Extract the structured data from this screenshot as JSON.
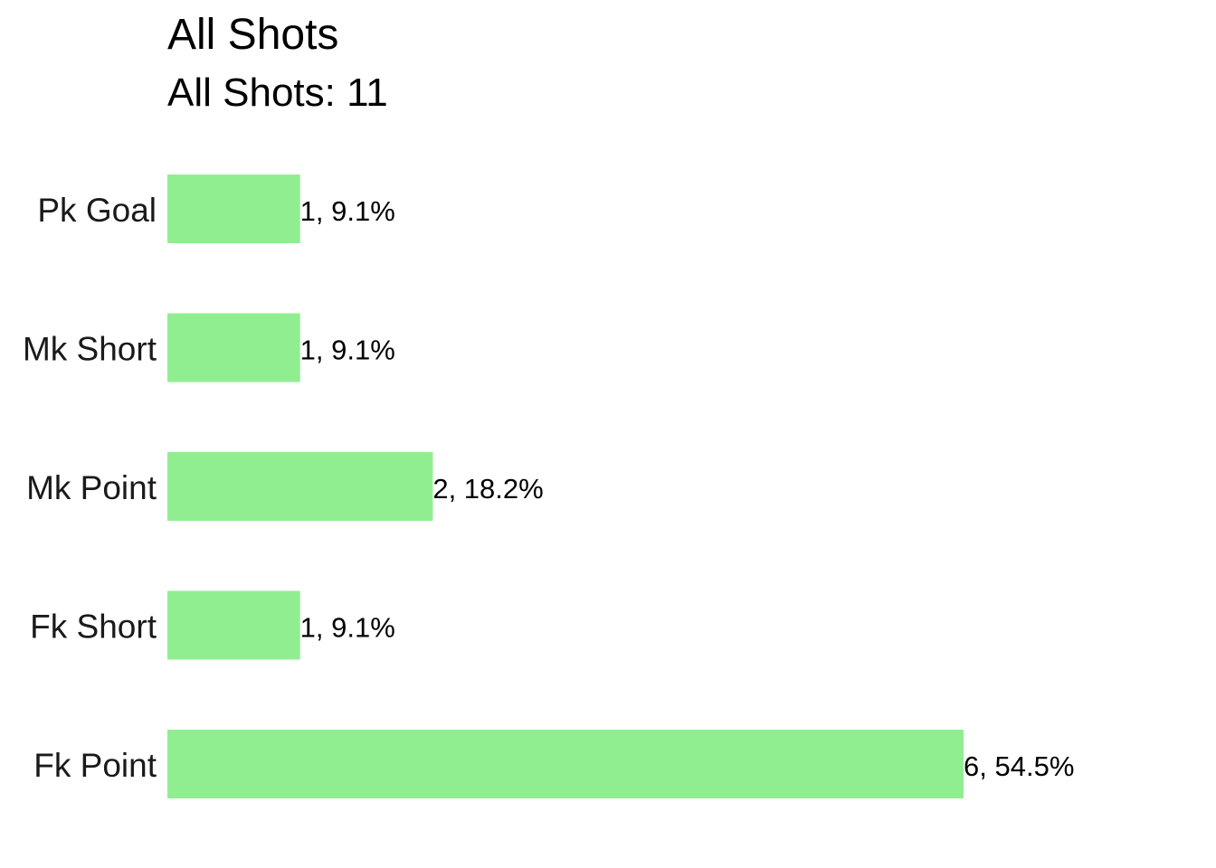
{
  "chart_data": {
    "type": "bar",
    "orientation": "horizontal",
    "title": "All Shots",
    "subtitle": "All Shots: 11",
    "categories": [
      "Pk Goal",
      "Mk Short",
      "Mk Point",
      "Fk Short",
      "Fk Point"
    ],
    "values": [
      1,
      1,
      2,
      1,
      6
    ],
    "data_labels": [
      "1, 9.1%",
      "1, 9.1%",
      "2, 18.2%",
      "1, 9.1%",
      "6, 54.5%"
    ],
    "xlabel": "",
    "ylabel": "",
    "xlim": [
      0,
      6
    ],
    "grid": false,
    "legend": "none",
    "bar_color": "#90EE90"
  }
}
